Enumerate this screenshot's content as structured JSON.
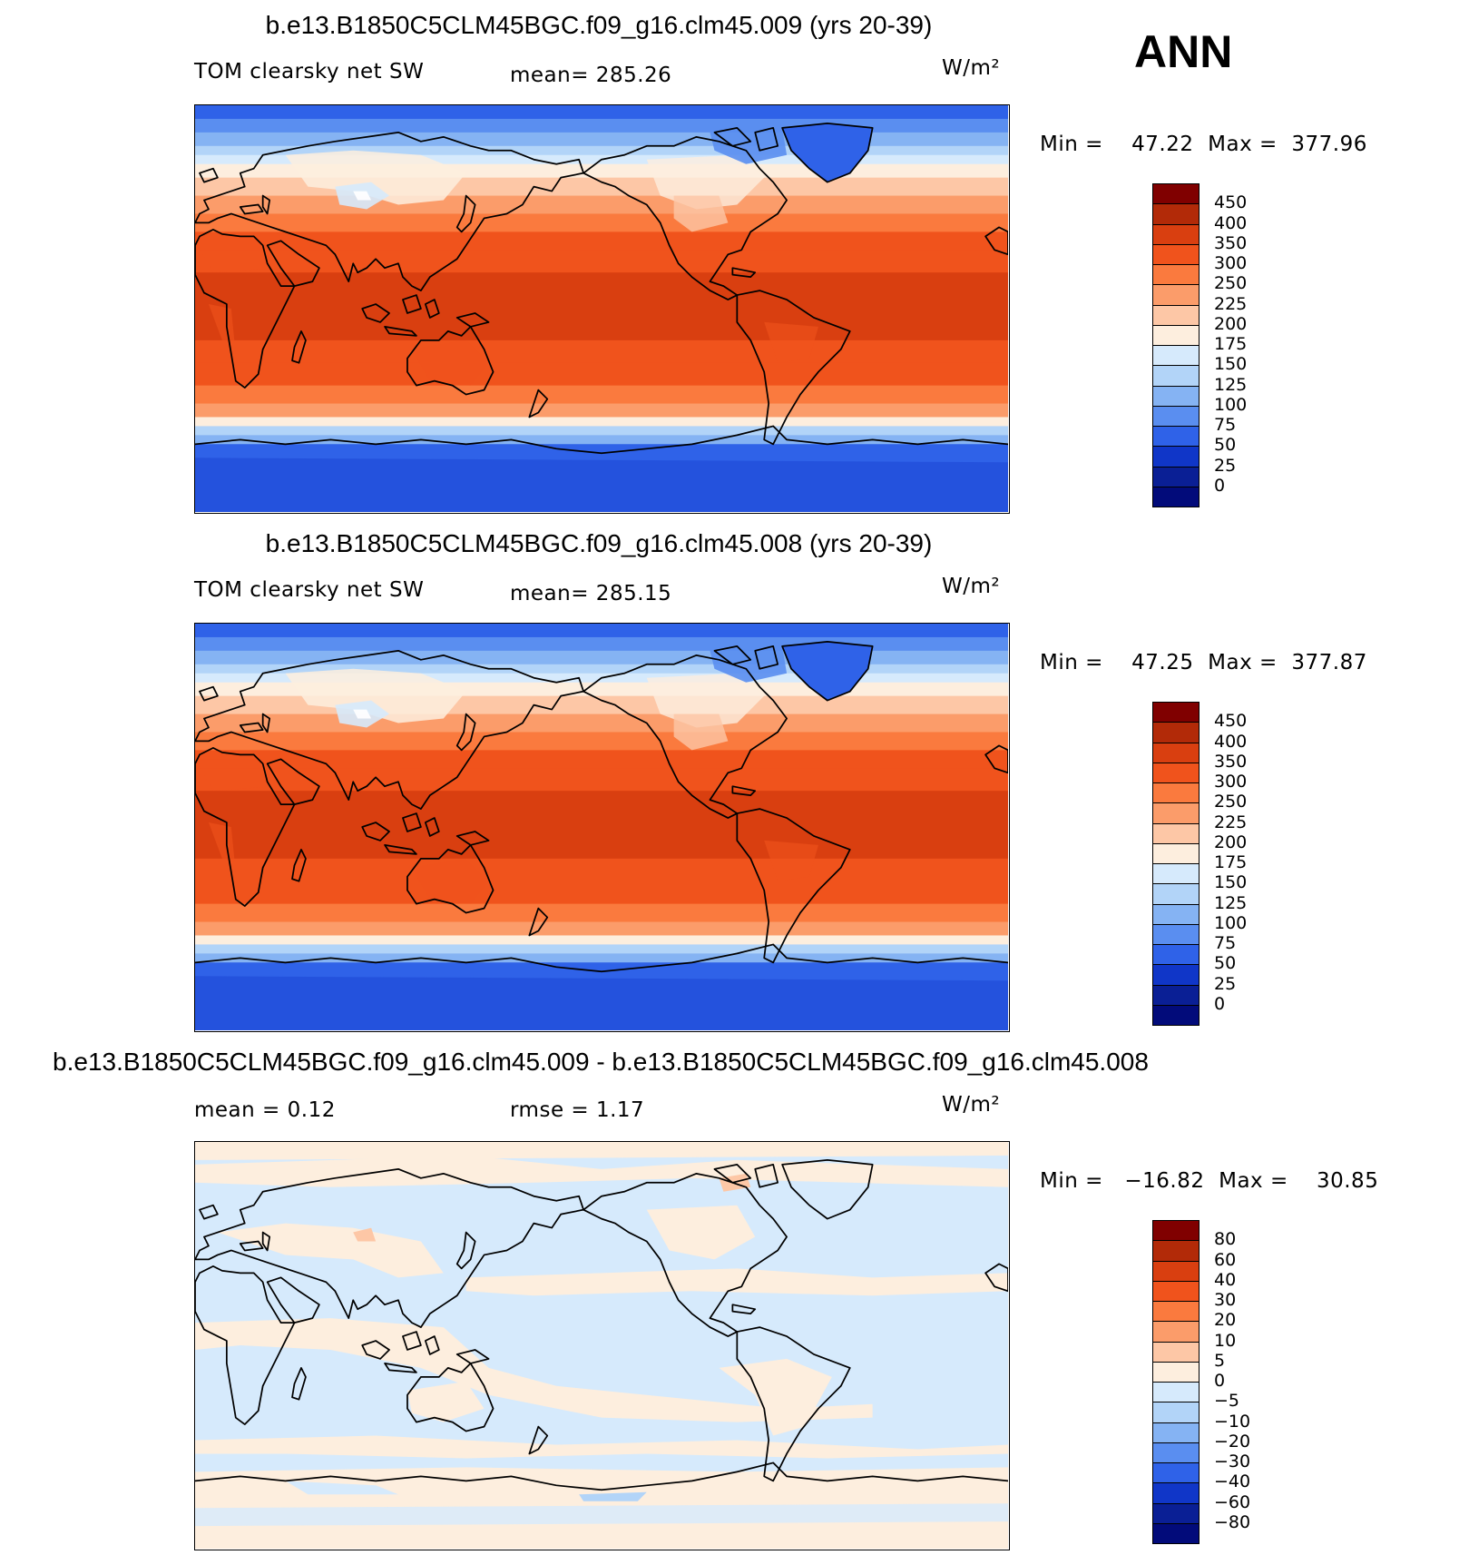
{
  "season": "ANN",
  "panels": [
    {
      "title": "b.e13.B1850C5CLM45BGC.f09_g16.clm45.009 (yrs 20-39)",
      "left_label": "TOM clearsky net SW",
      "center_label": "mean= 285.26",
      "units": "W/m²",
      "min_label": "Min =",
      "min_value": "47.22",
      "max_label": "Max =",
      "max_value": "377.96",
      "kind": "abs",
      "colorbar": {
        "labels": [
          "450",
          "400",
          "350",
          "300",
          "250",
          "225",
          "200",
          "175",
          "150",
          "125",
          "100",
          "75",
          "50",
          "25",
          "0"
        ],
        "colors": [
          "#800000",
          "#b22a08",
          "#d93f10",
          "#f0531c",
          "#fa7a3e",
          "#fb9c6a",
          "#fdc7a6",
          "#fdeede",
          "#d6eafc",
          "#b2d4f8",
          "#85b3f3",
          "#5a8ef0",
          "#2f62e8",
          "#1036c8",
          "#0a1f95",
          "#020b7a"
        ]
      }
    },
    {
      "title": "b.e13.B1850C5CLM45BGC.f09_g16.clm45.008 (yrs 20-39)",
      "left_label": "TOM clearsky net SW",
      "center_label": "mean= 285.15",
      "units": "W/m²",
      "min_label": "Min =",
      "min_value": "47.25",
      "max_label": "Max =",
      "max_value": "377.87",
      "kind": "abs",
      "colorbar": {
        "labels": [
          "450",
          "400",
          "350",
          "300",
          "250",
          "225",
          "200",
          "175",
          "150",
          "125",
          "100",
          "75",
          "50",
          "25",
          "0"
        ],
        "colors": [
          "#800000",
          "#b22a08",
          "#d93f10",
          "#f0531c",
          "#fa7a3e",
          "#fb9c6a",
          "#fdc7a6",
          "#fdeede",
          "#d6eafc",
          "#b2d4f8",
          "#85b3f3",
          "#5a8ef0",
          "#2f62e8",
          "#1036c8",
          "#0a1f95",
          "#020b7a"
        ]
      }
    },
    {
      "title": "b.e13.B1850C5CLM45BGC.f09_g16.clm45.009 - b.e13.B1850C5CLM45BGC.f09_g16.clm45.008",
      "left_label": "mean =    0.12",
      "center_label": "rmse =    1.17",
      "units": "W/m²",
      "min_label": "Min =",
      "min_value": "−16.82",
      "max_label": "Max =",
      "max_value": "30.85",
      "kind": "diff",
      "colorbar": {
        "labels": [
          "80",
          "60",
          "40",
          "30",
          "20",
          "10",
          "5",
          "0",
          "−5",
          "−10",
          "−20",
          "−30",
          "−40",
          "−60",
          "−80"
        ],
        "colors": [
          "#800000",
          "#b22a08",
          "#d93f10",
          "#f0531c",
          "#fa7a3e",
          "#fb9c6a",
          "#fdc7a6",
          "#fdeede",
          "#d6eafc",
          "#b2d4f8",
          "#85b3f3",
          "#5a8ef0",
          "#2f62e8",
          "#1036c8",
          "#0a1f95",
          "#020b7a"
        ]
      }
    }
  ]
}
